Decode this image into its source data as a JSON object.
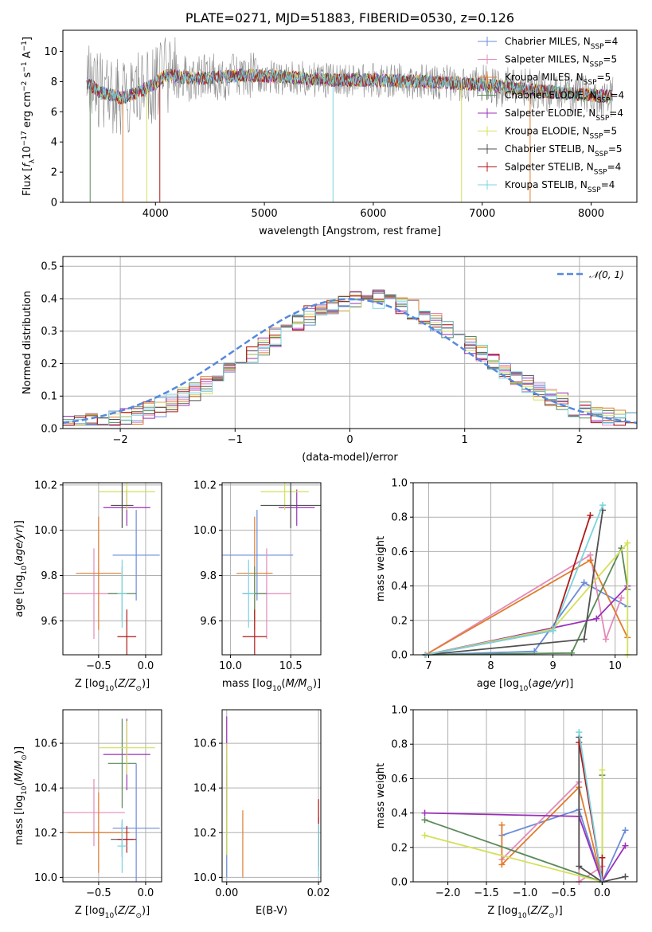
{
  "colors": {
    "chabrier_miles": "#6a8dd8",
    "salpeter_miles": "#e58ab8",
    "kroupa_miles": "#e07c2c",
    "chabrier_elodie": "#5a8a5a",
    "salpeter_elodie": "#9b30b8",
    "kroupa_elodie": "#d4e05a",
    "chabrier_stelib": "#505050",
    "salpeter_stelib": "#b01818",
    "kroupa_stelib": "#78d4e0",
    "normal": "#5588dd"
  },
  "chart_data": [
    {
      "id": "spectrum",
      "type": "line",
      "title": "PLATE=0271, MJD=51883, FIBERID=0530, z=0.126",
      "xlabel": "wavelength [Angstrom, rest frame]",
      "ylabel": "Flux [fλ10⁻¹⁷ erg cm⁻² s⁻¹ A⁻¹]",
      "xlim": [
        3150,
        8420
      ],
      "ylim": [
        0,
        11.4
      ],
      "xticks": [
        "4000",
        "5000",
        "6000",
        "7000",
        "8000"
      ],
      "yticks": [
        "0",
        "2",
        "4",
        "6",
        "8",
        "10"
      ],
      "legend_placement": "top-right",
      "legend": [
        {
          "label": "Chabrier MILES, N_SSP=4",
          "color_key": "chabrier_miles"
        },
        {
          "label": "Salpeter MILES, N_SSP=5",
          "color_key": "salpeter_miles"
        },
        {
          "label": "Kroupa MILES, N_SSP=5",
          "color_key": "kroupa_miles"
        },
        {
          "label": "Chabrier ELODIE, N_SSP=4",
          "color_key": "chabrier_elodie"
        },
        {
          "label": "Salpeter ELODIE, N_SSP=4",
          "color_key": "salpeter_elodie"
        },
        {
          "label": "Kroupa ELODIE, N_SSP=5",
          "color_key": "kroupa_elodie"
        },
        {
          "label": "Chabrier STELIB, N_SSP=5",
          "color_key": "chabrier_stelib"
        },
        {
          "label": "Salpeter STELIB, N_SSP=4",
          "color_key": "salpeter_stelib"
        },
        {
          "label": "Kroupa STELIB, N_SSP=4",
          "color_key": "kroupa_stelib"
        }
      ],
      "continuum": [
        [
          3370,
          7.9
        ],
        [
          3500,
          7.3
        ],
        [
          3700,
          6.9
        ],
        [
          3950,
          7.7
        ],
        [
          4100,
          8.4
        ],
        [
          4400,
          8.2
        ],
        [
          4800,
          8.4
        ],
        [
          5200,
          8.3
        ],
        [
          5600,
          8.1
        ],
        [
          6000,
          8.1
        ],
        [
          6500,
          8.0
        ],
        [
          7000,
          7.8
        ],
        [
          7500,
          7.4
        ],
        [
          8000,
          7.1
        ],
        [
          8200,
          7.0
        ]
      ],
      "vertical_drops": [
        3400,
        3700,
        3920,
        4040,
        5630,
        6810,
        7440
      ]
    },
    {
      "id": "residual-histogram",
      "type": "histogram",
      "xlabel": "(data-model)/error",
      "ylabel": "Normed distribution",
      "xlim": [
        -2.5,
        2.5
      ],
      "ylim": [
        0,
        0.53
      ],
      "xticks": [
        "−2",
        "−1",
        "0",
        "1",
        "2"
      ],
      "yticks": [
        "0.0",
        "0.1",
        "0.2",
        "0.3",
        "0.4",
        "0.5"
      ],
      "reference_curve": "normal(0, 1)",
      "legend_placement": "top-right",
      "legend": [
        {
          "label": "𝒩(0, 1)",
          "color_key": "normal"
        }
      ],
      "bin_width": 0.1
    },
    {
      "id": "age-vs-Z",
      "type": "errorbar",
      "xlabel": "Z [log₁₀(Z/Z⊙)]",
      "ylabel": "age  [log₁₀(age/yr)]",
      "xlim": [
        -0.88,
        0.17
      ],
      "ylim": [
        9.45,
        10.21
      ],
      "xticks": [
        "−0.5",
        "0.0"
      ],
      "yticks": [
        "9.6",
        "9.8",
        "10.0",
        "10.2"
      ],
      "points": [
        {
          "color_key": "chabrier_miles",
          "x": -0.1,
          "y": 9.89,
          "xerr": 0.25,
          "yerr": 0.2
        },
        {
          "color_key": "salpeter_miles",
          "x": -0.55,
          "y": 9.72,
          "xerr": 0.33,
          "yerr": 0.2
        },
        {
          "color_key": "kroupa_miles",
          "x": -0.5,
          "y": 9.81,
          "xerr": 0.24,
          "yerr": 0.25
        },
        {
          "color_key": "chabrier_elodie",
          "x": -0.25,
          "y": 9.72,
          "xerr": 0.15,
          "yerr": 0.12
        },
        {
          "color_key": "salpeter_elodie",
          "x": -0.2,
          "y": 10.1,
          "xerr": 0.25,
          "yerr": 0.08
        },
        {
          "color_key": "kroupa_elodie",
          "x": -0.2,
          "y": 10.17,
          "xerr": 0.3,
          "yerr": 0.08
        },
        {
          "color_key": "chabrier_stelib",
          "x": -0.25,
          "y": 10.11,
          "xerr": 0.12,
          "yerr": 0.1
        },
        {
          "color_key": "salpeter_stelib",
          "x": -0.2,
          "y": 9.53,
          "xerr": 0.1,
          "yerr": 0.12
        },
        {
          "color_key": "kroupa_stelib",
          "x": -0.25,
          "y": 9.72,
          "xerr": 0.05,
          "yerr": 0.15
        }
      ]
    },
    {
      "id": "age-vs-mass",
      "type": "errorbar",
      "xlabel": "mass [log₁₀(M/M⊙)]",
      "ylabel": "",
      "xlim": [
        9.93,
        10.75
      ],
      "ylim": [
        9.45,
        10.21
      ],
      "xticks": [
        "10.0",
        "10.5"
      ],
      "yticks": [
        "9.6",
        "9.8",
        "10.0",
        "10.2"
      ],
      "points": [
        {
          "color_key": "chabrier_miles",
          "x": 10.22,
          "y": 9.89,
          "xerr": 0.3,
          "yerr": 0.2
        },
        {
          "color_key": "salpeter_miles",
          "x": 10.3,
          "y": 9.72,
          "xerr": 0.2,
          "yerr": 0.2
        },
        {
          "color_key": "kroupa_miles",
          "x": 10.2,
          "y": 9.81,
          "xerr": 0.15,
          "yerr": 0.25
        },
        {
          "color_key": "chabrier_elodie",
          "x": 10.2,
          "y": 9.72,
          "xerr": 0.1,
          "yerr": 0.12
        },
        {
          "color_key": "salpeter_elodie",
          "x": 10.55,
          "y": 10.1,
          "xerr": 0.15,
          "yerr": 0.08
        },
        {
          "color_key": "kroupa_elodie",
          "x": 10.45,
          "y": 10.17,
          "xerr": 0.2,
          "yerr": 0.08
        },
        {
          "color_key": "chabrier_stelib",
          "x": 10.5,
          "y": 10.11,
          "xerr": 0.25,
          "yerr": 0.1
        },
        {
          "color_key": "salpeter_stelib",
          "x": 10.2,
          "y": 9.53,
          "xerr": 0.1,
          "yerr": 0.12
        },
        {
          "color_key": "kroupa_stelib",
          "x": 10.15,
          "y": 9.72,
          "xerr": 0.05,
          "yerr": 0.15
        }
      ]
    },
    {
      "id": "weight-vs-age",
      "type": "line",
      "xlabel": "age  [log₁₀(age/yr)]",
      "ylabel": "mass weight",
      "xlim": [
        6.75,
        10.35
      ],
      "ylim": [
        0,
        1.0
      ],
      "xticks": [
        "7",
        "8",
        "9",
        "10"
      ],
      "yticks": [
        "0.0",
        "0.2",
        "0.4",
        "0.6",
        "0.8",
        "1.0"
      ],
      "grid": true,
      "series": [
        {
          "color_key": "chabrier_miles",
          "x": [
            6.95,
            8.7,
            9.5,
            10.2
          ],
          "y": [
            0.0,
            0.02,
            0.42,
            0.28
          ]
        },
        {
          "color_key": "salpeter_miles",
          "x": [
            6.95,
            9.6,
            9.85,
            10.1
          ],
          "y": [
            0.0,
            0.58,
            0.09,
            0.33
          ]
        },
        {
          "color_key": "kroupa_miles",
          "x": [
            6.95,
            9.6,
            10.2
          ],
          "y": [
            0.0,
            0.55,
            0.1
          ]
        },
        {
          "color_key": "chabrier_elodie",
          "x": [
            6.95,
            9.3,
            10.1,
            10.2
          ],
          "y": [
            0.0,
            0.01,
            0.62,
            0.38
          ]
        },
        {
          "color_key": "salpeter_elodie",
          "x": [
            6.95,
            9.7,
            10.2
          ],
          "y": [
            0.0,
            0.21,
            0.4
          ]
        },
        {
          "color_key": "kroupa_elodie",
          "x": [
            6.95,
            9.0,
            10.2,
            10.2
          ],
          "y": [
            0.0,
            0.15,
            0.65,
            0.0
          ]
        },
        {
          "color_key": "chabrier_stelib",
          "x": [
            6.95,
            9.5,
            9.8
          ],
          "y": [
            0.0,
            0.09,
            0.84
          ]
        },
        {
          "color_key": "salpeter_stelib",
          "x": [
            6.95,
            9.0,
            9.6
          ],
          "y": [
            0.0,
            0.14,
            0.81
          ]
        },
        {
          "color_key": "kroupa_stelib",
          "x": [
            6.95,
            9.0,
            9.8
          ],
          "y": [
            0.0,
            0.14,
            0.87
          ]
        }
      ]
    },
    {
      "id": "mass-vs-Z",
      "type": "errorbar",
      "xlabel": "Z [log₁₀(Z/Z⊙)]",
      "ylabel": "mass [log₁₀(M/M⊙)]",
      "xlim": [
        -0.88,
        0.17
      ],
      "ylim": [
        9.98,
        10.75
      ],
      "xticks": [
        "−0.5",
        "0.0"
      ],
      "yticks": [
        "10.0",
        "10.2",
        "10.4",
        "10.6"
      ],
      "points": [
        {
          "color_key": "chabrier_miles",
          "x": -0.1,
          "y": 10.22,
          "xerr": 0.25,
          "yerr": 0.29
        },
        {
          "color_key": "salpeter_miles",
          "x": -0.55,
          "y": 10.29,
          "xerr": 0.33,
          "yerr": 0.15
        },
        {
          "color_key": "kroupa_miles",
          "x": -0.5,
          "y": 10.2,
          "xerr": 0.33,
          "yerr": 0.18
        },
        {
          "color_key": "chabrier_elodie",
          "x": -0.25,
          "y": 10.51,
          "xerr": 0.15,
          "yerr": 0.2
        },
        {
          "color_key": "salpeter_elodie",
          "x": -0.2,
          "y": 10.55,
          "xerr": 0.25,
          "yerr": 0.16
        },
        {
          "color_key": "kroupa_elodie",
          "x": -0.2,
          "y": 10.58,
          "xerr": 0.3,
          "yerr": 0.12
        },
        {
          "color_key": "chabrier_stelib",
          "x": -0.25,
          "y": 10.17,
          "xerr": 0.12,
          "yerr": 0.08
        },
        {
          "color_key": "salpeter_stelib",
          "x": -0.2,
          "y": 10.17,
          "xerr": 0.1,
          "yerr": 0.06
        },
        {
          "color_key": "kroupa_stelib",
          "x": -0.25,
          "y": 10.14,
          "xerr": 0.05,
          "yerr": 0.12
        }
      ]
    },
    {
      "id": "mass-vs-ebv",
      "type": "errorbar",
      "xlabel": "E(B-V)",
      "ylabel": "",
      "xlim": [
        -0.001,
        0.0205
      ],
      "ylim": [
        9.98,
        10.75
      ],
      "xticks": [
        "0.00",
        "0.02"
      ],
      "yticks": [
        "10.0",
        "10.2",
        "10.4",
        "10.6"
      ],
      "points": [
        {
          "color_key": "chabrier_miles",
          "x": 0.0,
          "y": 10.2,
          "xerr": 0,
          "yerr": 0.2
        },
        {
          "color_key": "salpeter_miles",
          "x": 0.0,
          "y": 10.3,
          "xerr": 0,
          "yerr": 0.15
        },
        {
          "color_key": "kroupa_miles",
          "x": 0.0035,
          "y": 10.15,
          "xerr": 0,
          "yerr": 0.15
        },
        {
          "color_key": "chabrier_elodie",
          "x": 0.0,
          "y": 10.3,
          "xerr": 0,
          "yerr": 0.2
        },
        {
          "color_key": "salpeter_elodie",
          "x": 0.0,
          "y": 10.5,
          "xerr": 0,
          "yerr": 0.22
        },
        {
          "color_key": "kroupa_elodie",
          "x": 0.0,
          "y": 10.35,
          "xerr": 0,
          "yerr": 0.25
        },
        {
          "color_key": "chabrier_stelib",
          "x": 0.02,
          "y": 10.15,
          "xerr": 0,
          "yerr": 0.12
        },
        {
          "color_key": "salpeter_stelib",
          "x": 0.02,
          "y": 10.2,
          "xerr": 0,
          "yerr": 0.15
        },
        {
          "color_key": "kroupa_stelib",
          "x": 0.02,
          "y": 10.12,
          "xerr": 0,
          "yerr": 0.12
        }
      ]
    },
    {
      "id": "weight-vs-Z",
      "type": "line",
      "xlabel": "Z [log₁₀(Z/Z⊙)]",
      "ylabel": "mass weight",
      "xlim": [
        -2.45,
        0.45
      ],
      "ylim": [
        0,
        1.0
      ],
      "xticks": [
        "−2.0",
        "−1.5",
        "−1.0",
        "−0.5",
        "0.0"
      ],
      "yticks": [
        "0.0",
        "0.2",
        "0.4",
        "0.6",
        "0.8",
        "1.0"
      ],
      "grid": true,
      "series": [
        {
          "color_key": "chabrier_miles",
          "x": [
            -1.3,
            -0.3,
            0.0,
            0.3
          ],
          "y": [
            0.27,
            0.42,
            0.0,
            0.3
          ]
        },
        {
          "color_key": "salpeter_miles",
          "x": [
            -1.3,
            -0.3,
            -0.3,
            0.0
          ],
          "y": [
            0.13,
            0.58,
            0.0,
            0.09
          ]
        },
        {
          "color_key": "kroupa_miles",
          "x": [
            -1.3,
            -1.3,
            -0.3,
            0.0
          ],
          "y": [
            0.33,
            0.1,
            0.55,
            0.0
          ]
        },
        {
          "color_key": "chabrier_elodie",
          "x": [
            -2.3,
            0.0,
            0.0
          ],
          "y": [
            0.36,
            0.0,
            0.62
          ]
        },
        {
          "color_key": "salpeter_elodie",
          "x": [
            -2.3,
            -0.3,
            0.0,
            0.3
          ],
          "y": [
            0.4,
            0.38,
            0.0,
            0.21
          ]
        },
        {
          "color_key": "kroupa_elodie",
          "x": [
            -2.3,
            0.0,
            0.0
          ],
          "y": [
            0.27,
            0.0,
            0.65
          ]
        },
        {
          "color_key": "chabrier_stelib",
          "x": [
            -0.3,
            -0.3,
            0.0,
            0.3
          ],
          "y": [
            0.84,
            0.09,
            0.0,
            0.03
          ]
        },
        {
          "color_key": "salpeter_stelib",
          "x": [
            -0.3,
            0.0,
            0.0
          ],
          "y": [
            0.81,
            0.0,
            0.14
          ]
        },
        {
          "color_key": "kroupa_stelib",
          "x": [
            -0.3,
            0.0
          ],
          "y": [
            0.87,
            0.0
          ]
        }
      ]
    }
  ]
}
